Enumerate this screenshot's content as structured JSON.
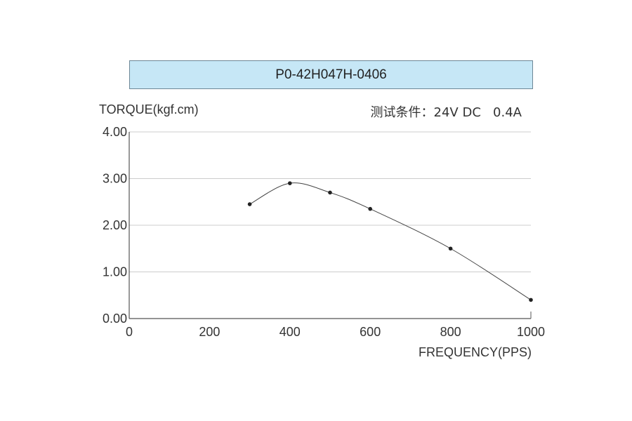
{
  "header": {
    "model": "P0-42H047H-0406",
    "conditions": "测试条件：24V DC   0.4A"
  },
  "chart_data": {
    "type": "line",
    "xlabel": "FREQUENCY(PPS)",
    "ylabel": "TORQUE(kgf.cm)",
    "xlim": [
      0,
      1000
    ],
    "ylim": [
      0,
      4
    ],
    "x_ticks": [
      0,
      200,
      400,
      600,
      800,
      1000
    ],
    "x_tick_labels": [
      "0",
      "200",
      "400",
      "600",
      "800",
      "1000"
    ],
    "y_ticks": [
      0,
      1,
      2,
      3,
      4
    ],
    "y_tick_labels": [
      "0.00",
      "1.00",
      "2.00",
      "3.00",
      "4.00"
    ],
    "grid": "horizontal",
    "series": [
      {
        "x": [
          300,
          400,
          500,
          600,
          800,
          1000
        ],
        "y": [
          2.45,
          2.9,
          2.7,
          2.35,
          1.5,
          0.4
        ]
      }
    ],
    "colors": {
      "title_bg": "#c6e7f6",
      "line": "#444444",
      "grid": "#cccccc",
      "axis": "#555555"
    }
  }
}
